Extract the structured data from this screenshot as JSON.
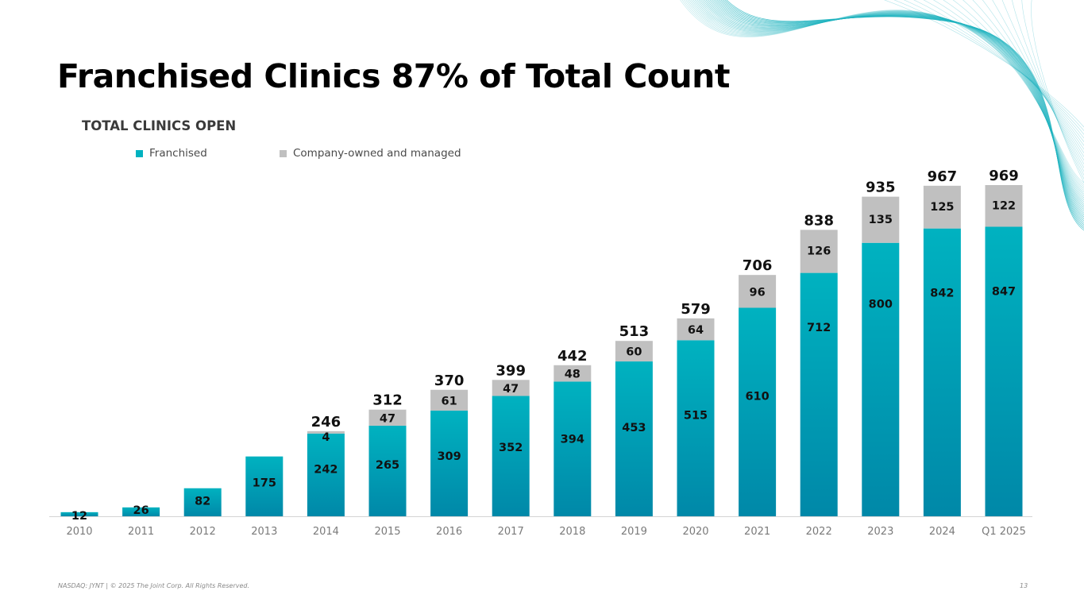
{
  "slide": {
    "title": "Franchised Clinics 87% of Total Count",
    "footer_left": "NASDAQ: JYNT   |  © 2025 The Joint Corp. All Rights Reserved.",
    "page_number": "13"
  },
  "colors": {
    "franchised_top": "#00B2C0",
    "franchised_bottom": "#0088A8",
    "company": "#C0C0C0",
    "axis_line": "#D4D4D4",
    "tick_label": "#7a7a7a",
    "wave": "#1FB3BF"
  },
  "chart_data": {
    "type": "bar",
    "stacked": true,
    "title": "TOTAL CLINICS OPEN",
    "xlabel": "",
    "ylabel": "",
    "ylim": [
      0,
      1000
    ],
    "grid": false,
    "legend_position": "top-left",
    "categories": [
      "2010",
      "2011",
      "2012",
      "2013",
      "2014",
      "2015",
      "2016",
      "2017",
      "2018",
      "2019",
      "2020",
      "2021",
      "2022",
      "2023",
      "2024",
      "Q1 2025"
    ],
    "series": [
      {
        "name": "Franchised",
        "color": "#00A3B8",
        "values": [
          12,
          26,
          82,
          175,
          242,
          265,
          309,
          352,
          394,
          453,
          515,
          610,
          712,
          800,
          842,
          847
        ],
        "labels": [
          "12",
          "26",
          "82",
          "175",
          "242",
          "265",
          "309",
          "352",
          "394",
          "453",
          "515",
          "610",
          "712",
          "800",
          "842",
          "847"
        ]
      },
      {
        "name": "Company-owned and managed",
        "color": "#C0C0C0",
        "values": [
          0,
          0,
          0,
          0,
          4,
          47,
          61,
          47,
          48,
          60,
          64,
          96,
          126,
          135,
          125,
          122
        ],
        "labels": [
          "",
          "",
          "",
          "",
          "4",
          "47",
          "61",
          "47",
          "48",
          "60",
          "64",
          "96",
          "126",
          "135",
          "125",
          "122"
        ]
      }
    ],
    "totals": [
      "",
      "",
      "",
      "",
      "246",
      "312",
      "370",
      "399",
      "442",
      "513",
      "579",
      "706",
      "838",
      "935",
      "967",
      "969"
    ]
  }
}
